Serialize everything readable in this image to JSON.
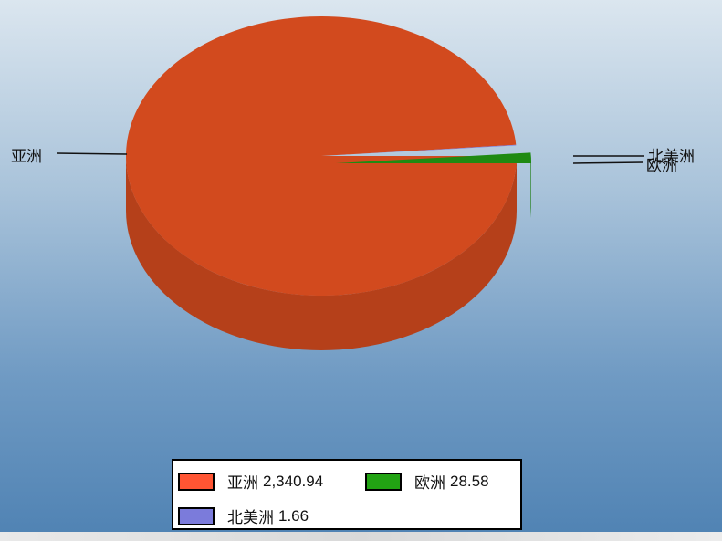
{
  "chart_data": {
    "type": "pie",
    "style": "3d",
    "series": [
      {
        "name": "亚洲",
        "value": 2340.94,
        "value_label": "2,340.94",
        "color": "#d24a1e",
        "legend_color": "#ff5533"
      },
      {
        "name": "欧洲",
        "value": 28.58,
        "value_label": "28.58",
        "color": "#1f8a12",
        "legend_color": "#22a313"
      },
      {
        "name": "北美洲",
        "value": 1.66,
        "value_label": "1.66",
        "color": "#7a7ae0",
        "legend_color": "#7b7bdb"
      }
    ],
    "legend_position": "bottom"
  }
}
